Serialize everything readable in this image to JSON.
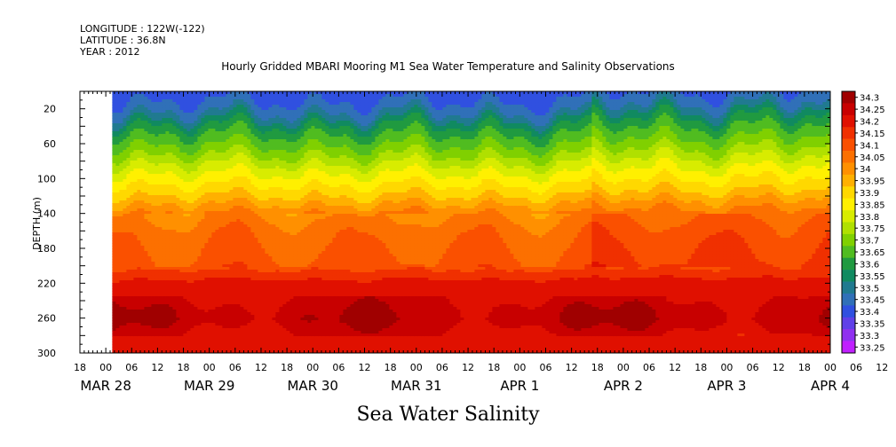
{
  "header": {
    "longitude": "LONGITUDE : 122W(-122)",
    "latitude": "LATITUDE : 36.8N",
    "year": "YEAR : 2012"
  },
  "chart_data": {
    "type": "heatmap",
    "title": "Hourly Gridded MBARI Mooring M1 Sea Water Temperature and Salinity Observations",
    "footer_label": "Sea Water Salinity",
    "ylabel": "DEPTH (m)",
    "y_axis": {
      "range": [
        0,
        300
      ],
      "inverted": true,
      "ticks": [
        20,
        60,
        100,
        140,
        180,
        220,
        260,
        300
      ]
    },
    "x_axis": {
      "range_hours": [
        0,
        174
      ],
      "hour_ticks": [
        "18",
        "00",
        "06",
        "12",
        "18",
        "00",
        "06",
        "12",
        "18",
        "00",
        "06",
        "12",
        "18",
        "00",
        "06",
        "12",
        "18",
        "00",
        "06",
        "12",
        "18",
        "00",
        "06",
        "12",
        "18",
        "00",
        "06",
        "12",
        "18",
        "00",
        "06",
        "12",
        "18"
      ],
      "date_labels": [
        {
          "label": "MAR 28",
          "hour": 6
        },
        {
          "label": "MAR 29",
          "hour": 30
        },
        {
          "label": "MAR 30",
          "hour": 54
        },
        {
          "label": "MAR 31",
          "hour": 78
        },
        {
          "label": "APR  1",
          "hour": 102
        },
        {
          "label": "APR  2",
          "hour": 126
        },
        {
          "label": "APR  3",
          "hour": 150
        },
        {
          "label": "APR  4",
          "hour": 174
        }
      ]
    },
    "data_start_hour": 7.5,
    "colorbar": {
      "levels": [
        "34.3",
        "34.25",
        "34.2",
        "34.15",
        "34.1",
        "34.05",
        "34",
        "33.95",
        "33.9",
        "33.85",
        "33.8",
        "33.75",
        "33.7",
        "33.65",
        "33.6",
        "33.55",
        "33.5",
        "33.45",
        "33.4",
        "33.35",
        "33.3",
        "33.25"
      ],
      "colors": [
        "#a00000",
        "#c80000",
        "#e01000",
        "#f03000",
        "#fa5000",
        "#fc7000",
        "#ff9000",
        "#ffb000",
        "#ffd800",
        "#fff000",
        "#d8ec00",
        "#b0e000",
        "#80d000",
        "#50bc20",
        "#209a40",
        "#108a60",
        "#207a90",
        "#3070b8",
        "#3050e0",
        "#6040e8",
        "#9030f0",
        "#c020ff"
      ]
    },
    "salinity_profile": [
      {
        "depth": 5,
        "value": 33.36
      },
      {
        "depth": 12,
        "value": 33.4
      },
      {
        "depth": 20,
        "value": 33.42
      },
      {
        "depth": 30,
        "value": 33.48
      },
      {
        "depth": 40,
        "value": 33.55
      },
      {
        "depth": 50,
        "value": 33.6
      },
      {
        "depth": 60,
        "value": 33.64
      },
      {
        "depth": 70,
        "value": 33.68
      },
      {
        "depth": 80,
        "value": 33.73
      },
      {
        "depth": 90,
        "value": 33.78
      },
      {
        "depth": 100,
        "value": 33.82
      },
      {
        "depth": 110,
        "value": 33.86
      },
      {
        "depth": 120,
        "value": 33.9
      },
      {
        "depth": 130,
        "value": 33.95
      },
      {
        "depth": 140,
        "value": 34.0
      },
      {
        "depth": 160,
        "value": 34.04
      },
      {
        "depth": 180,
        "value": 34.06
      },
      {
        "depth": 200,
        "value": 34.08
      },
      {
        "depth": 210,
        "value": 34.12
      },
      {
        "depth": 220,
        "value": 34.17
      },
      {
        "depth": 235,
        "value": 34.2
      },
      {
        "depth": 250,
        "value": 34.23
      },
      {
        "depth": 262,
        "value": 34.24
      },
      {
        "depth": 275,
        "value": 34.21
      },
      {
        "depth": 285,
        "value": 34.18
      },
      {
        "depth": 300,
        "value": 34.17
      }
    ]
  }
}
